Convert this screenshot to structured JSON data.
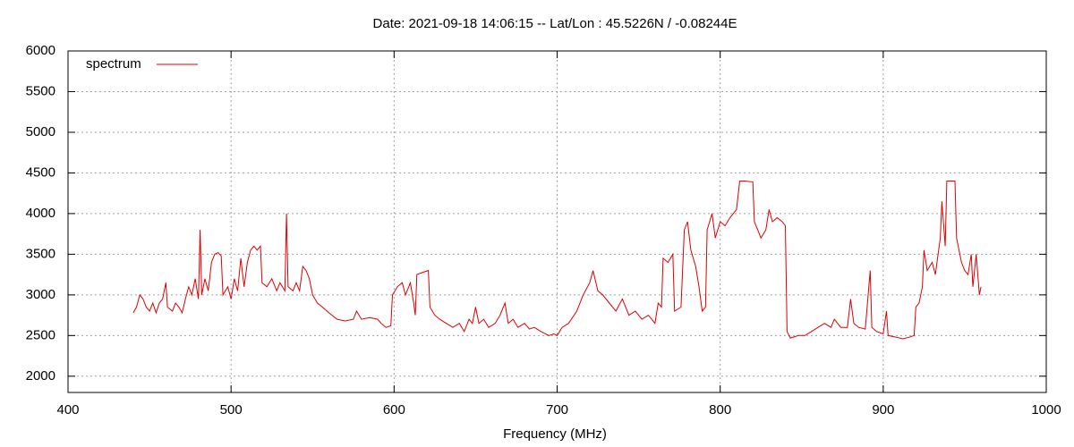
{
  "chart_data": {
    "type": "line",
    "title": "Date: 2021-09-18 14:06:15  --  Lat/Lon : 45.5226N / -0.08244E",
    "x_label": "Frequency (MHz)",
    "xlim": [
      400,
      1000
    ],
    "xticks": [
      400,
      500,
      600,
      700,
      800,
      900,
      1000
    ],
    "ylim": [
      1800,
      6000
    ],
    "yticks": [
      2000,
      2500,
      3000,
      3500,
      4000,
      4500,
      5000,
      5500,
      6000
    ],
    "grid": true,
    "legend": "top-left",
    "x": [
      440,
      442,
      444,
      446,
      448,
      450,
      452,
      454,
      456,
      458,
      460,
      461,
      464,
      466,
      468,
      470,
      472,
      474,
      476,
      478,
      480,
      481,
      482,
      484,
      486,
      488,
      490,
      492,
      494,
      495,
      498,
      500,
      502,
      504,
      506,
      508,
      510,
      512,
      514,
      516,
      518,
      519,
      522,
      525,
      528,
      530,
      533,
      534,
      535,
      538,
      540,
      542,
      544,
      546,
      548,
      550,
      553,
      556,
      560,
      565,
      570,
      575,
      577,
      580,
      585,
      590,
      592,
      595,
      598,
      599,
      602,
      605,
      607,
      610,
      612,
      613,
      614,
      618,
      621,
      622,
      625,
      628,
      632,
      636,
      640,
      643,
      646,
      648,
      650,
      652,
      655,
      658,
      662,
      665,
      668,
      670,
      673,
      676,
      680,
      683,
      686,
      690,
      695,
      698,
      700,
      703,
      707,
      712,
      716,
      720,
      722,
      725,
      728,
      732,
      736,
      740,
      744,
      748,
      752,
      756,
      760,
      762,
      764,
      765,
      768,
      771,
      772,
      776,
      778,
      780,
      782,
      785,
      787,
      789,
      791,
      792,
      795,
      797,
      800,
      803,
      806,
      810,
      812,
      815,
      820,
      821,
      823,
      825,
      828,
      830,
      832,
      835,
      838,
      840,
      841,
      843,
      848,
      852,
      856,
      860,
      864,
      868,
      870,
      874,
      878,
      880,
      882,
      885,
      889,
      892,
      893,
      896,
      900,
      902,
      903,
      908,
      912,
      916,
      919,
      920,
      922,
      924,
      925,
      927,
      930,
      932,
      935,
      936,
      938,
      939,
      942,
      944,
      945,
      948,
      950,
      952,
      954,
      955,
      957,
      959,
      960
    ],
    "series": [
      {
        "name": "spectrum",
        "color": "#e00000",
        "values": [
          2780,
          2850,
          3000,
          2950,
          2850,
          2800,
          2900,
          2780,
          2900,
          2950,
          3150,
          2850,
          2800,
          2900,
          2850,
          2780,
          2950,
          3100,
          3000,
          3200,
          2950,
          3800,
          3000,
          3200,
          3050,
          3400,
          3500,
          3520,
          3480,
          3000,
          3100,
          2950,
          3200,
          3050,
          3450,
          3100,
          3400,
          3550,
          3600,
          3550,
          3600,
          3150,
          3100,
          3200,
          3050,
          3150,
          3050,
          4000,
          3100,
          3050,
          3150,
          3050,
          3350,
          3300,
          3200,
          3000,
          2900,
          2850,
          2780,
          2700,
          2680,
          2700,
          2800,
          2700,
          2720,
          2700,
          2650,
          2600,
          2620,
          3000,
          3100,
          3150,
          3000,
          3150,
          2900,
          2750,
          3250,
          3280,
          3300,
          2850,
          2750,
          2700,
          2650,
          2600,
          2650,
          2550,
          2700,
          2650,
          2850,
          2650,
          2700,
          2600,
          2650,
          2750,
          2900,
          2650,
          2700,
          2600,
          2650,
          2580,
          2600,
          2550,
          2500,
          2520,
          2500,
          2600,
          2650,
          2800,
          3000,
          3150,
          3300,
          3050,
          3000,
          2900,
          2800,
          2950,
          2750,
          2800,
          2700,
          2750,
          2650,
          2900,
          2850,
          3450,
          3400,
          3500,
          2800,
          2850,
          3800,
          3900,
          3550,
          3350,
          3100,
          2800,
          2850,
          3800,
          4000,
          3700,
          3900,
          3850,
          3950,
          4050,
          4400,
          4400,
          4390,
          3900,
          3800,
          3700,
          3800,
          4050,
          3900,
          3950,
          3900,
          3850,
          2550,
          2470,
          2500,
          2500,
          2550,
          2600,
          2650,
          2600,
          2700,
          2600,
          2600,
          2950,
          2650,
          2600,
          2580,
          3300,
          2600,
          2550,
          2520,
          2800,
          2500,
          2480,
          2460,
          2480,
          2500,
          2850,
          2900,
          3100,
          3550,
          3300,
          3400,
          3250,
          3700,
          4150,
          3600,
          4400,
          4400,
          4400,
          3700,
          3400,
          3300,
          3250,
          3500,
          3100,
          3500,
          3000,
          3100
        ]
      }
    ]
  }
}
